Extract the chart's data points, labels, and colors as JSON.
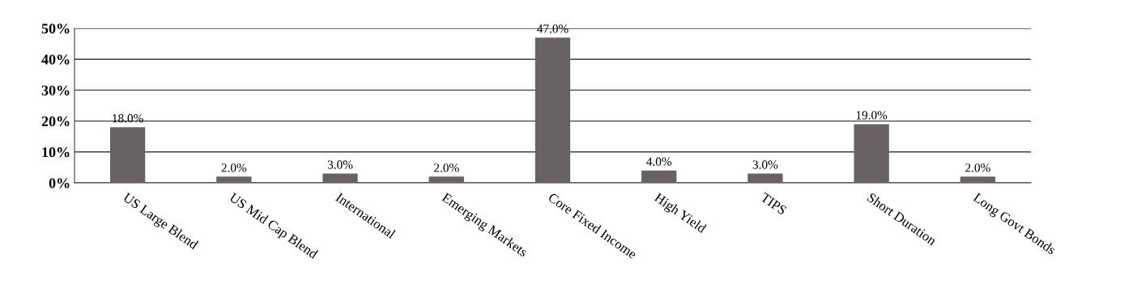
{
  "chart_data": {
    "type": "bar",
    "categories": [
      "US Large Blend",
      "US Mid Cap Blend",
      "International",
      "Emerging Markets",
      "Core Fixed Income",
      "High Yield",
      "TIPS",
      "Short Duration",
      "Long Govt Bonds"
    ],
    "values": [
      18,
      2,
      3,
      2,
      47,
      4,
      3,
      19,
      2
    ],
    "value_labels": [
      "18.0%",
      "2.0%",
      "3.0%",
      "2.0%",
      "47.0%",
      "4.0%",
      "3.0%",
      "19.0%",
      "2.0%"
    ],
    "color": "#686362",
    "ylim": [
      0,
      50
    ],
    "yticks": [
      {
        "value": 0,
        "label": "0%"
      },
      {
        "value": 10,
        "label": "10%"
      },
      {
        "value": 20,
        "label": "20%"
      },
      {
        "value": 30,
        "label": "30%"
      },
      {
        "value": 40,
        "label": "40%"
      },
      {
        "value": 50,
        "label": "50%"
      }
    ],
    "grid": "y",
    "legend": false
  }
}
